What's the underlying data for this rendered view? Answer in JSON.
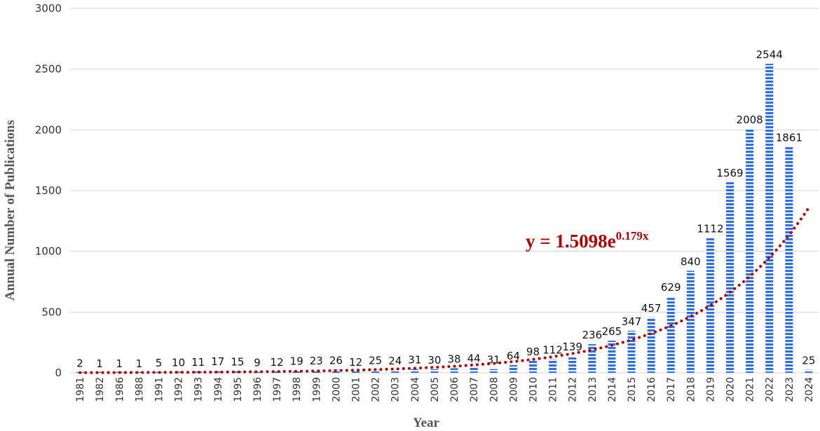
{
  "chart_data": {
    "type": "bar",
    "categories": [
      "1981",
      "1982",
      "1986",
      "1988",
      "1991",
      "1992",
      "1993",
      "1994",
      "1995",
      "1996",
      "1997",
      "1998",
      "1999",
      "2000",
      "2001",
      "2002",
      "2003",
      "2004",
      "2005",
      "2006",
      "2007",
      "2008",
      "2009",
      "2010",
      "2011",
      "2012",
      "2013",
      "2014",
      "2015",
      "2016",
      "2017",
      "2018",
      "2019",
      "2020",
      "2021",
      "2022",
      "2023",
      "2024"
    ],
    "values": [
      2,
      1,
      1,
      1,
      5,
      10,
      11,
      17,
      15,
      9,
      12,
      19,
      23,
      26,
      12,
      25,
      24,
      31,
      30,
      38,
      44,
      31,
      64,
      98,
      112,
      139,
      236,
      265,
      347,
      457,
      629,
      840,
      1112,
      1569,
      2008,
      2544,
      1861,
      25
    ],
    "xlabel": "Year",
    "ylabel": "Annual Number of Publications",
    "ylim": [
      0,
      3000
    ],
    "yticks": [
      "0",
      "500",
      "1000",
      "1500",
      "2000",
      "2500",
      "3000"
    ],
    "grid": true,
    "bar_color": "#2f6fe6",
    "trendline": {
      "type": "exponential",
      "a": 1.5098,
      "b": 0.179,
      "color": "#b30000",
      "style": "dotted",
      "label_main": "y = 1.5098e",
      "label_exp": "0.179x"
    }
  }
}
